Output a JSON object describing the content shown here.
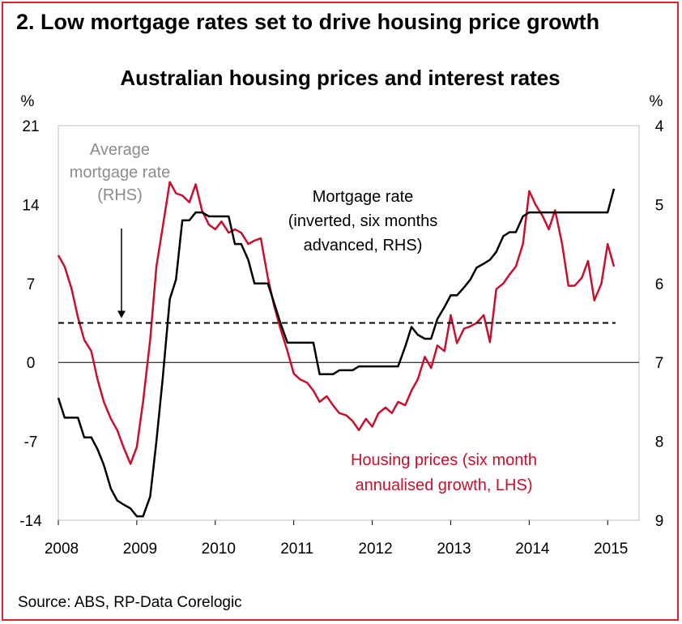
{
  "page": {
    "figure_title": "2. Low mortgage rates set to drive housing price growth",
    "source": "Source: ABS, RP-Data Corelogic"
  },
  "chart_data": {
    "type": "line",
    "title": "Australian housing prices and interest rates",
    "y_left": {
      "unit": "%",
      "ticks": [
        21,
        14,
        7,
        0,
        -7,
        -14
      ],
      "ylim": [
        -14,
        21
      ]
    },
    "y_right": {
      "unit": "%",
      "ticks": [
        4,
        5,
        6,
        7,
        8,
        9
      ],
      "ylim": [
        9,
        4
      ],
      "inverted": true
    },
    "x": {
      "ticks": [
        "2008",
        "2009",
        "2010",
        "2011",
        "2012",
        "2013",
        "2014",
        "2015"
      ],
      "xlim": [
        2008,
        2015.4
      ]
    },
    "grid": false,
    "colors": {
      "housing": "#c8102e",
      "mortgage": "#000000",
      "average": "#000000",
      "annotation_grey": "#8c8c8c",
      "frame": "#d7262e"
    },
    "annotations": {
      "average": [
        "Average",
        "mortgage rate",
        "(RHS)"
      ],
      "mortgage": [
        "Mortgage rate",
        "(inverted, six months",
        "advanced, RHS)"
      ],
      "housing": [
        "Housing prices (six month",
        "annualised growth, LHS)"
      ]
    },
    "series": [
      {
        "key": "housing",
        "axis": "left",
        "x": [
          2008.0,
          2008.08,
          2008.17,
          2008.25,
          2008.33,
          2008.42,
          2008.5,
          2008.58,
          2008.67,
          2008.75,
          2008.83,
          2008.92,
          2009.0,
          2009.08,
          2009.17,
          2009.25,
          2009.33,
          2009.42,
          2009.5,
          2009.58,
          2009.67,
          2009.75,
          2009.83,
          2009.92,
          2010.0,
          2010.08,
          2010.17,
          2010.25,
          2010.33,
          2010.42,
          2010.5,
          2010.58,
          2010.67,
          2010.75,
          2010.83,
          2010.92,
          2011.0,
          2011.08,
          2011.17,
          2011.25,
          2011.33,
          2011.42,
          2011.5,
          2011.58,
          2011.67,
          2011.75,
          2011.83,
          2011.92,
          2012.0,
          2012.08,
          2012.17,
          2012.25,
          2012.33,
          2012.42,
          2012.5,
          2012.58,
          2012.67,
          2012.75,
          2012.83,
          2012.92,
          2013.0,
          2013.08,
          2013.17,
          2013.25,
          2013.33,
          2013.42,
          2013.5,
          2013.58,
          2013.67,
          2013.75,
          2013.83,
          2013.92,
          2014.0,
          2014.08,
          2014.17,
          2014.25,
          2014.33,
          2014.42,
          2014.5,
          2014.58,
          2014.67,
          2014.75,
          2014.83,
          2014.92,
          2015.0,
          2015.08
        ],
        "values": [
          9.5,
          8.5,
          6.5,
          4.0,
          2.0,
          1.0,
          -1.5,
          -3.5,
          -5.0,
          -6.0,
          -7.5,
          -9.0,
          -7.5,
          -3.5,
          2.0,
          8.5,
          12.0,
          16.0,
          15.0,
          14.8,
          14.2,
          15.8,
          13.5,
          12.2,
          11.8,
          12.5,
          11.5,
          11.8,
          11.5,
          10.5,
          10.8,
          11.0,
          7.5,
          5.0,
          3.0,
          1.0,
          -1.0,
          -1.5,
          -1.8,
          -2.5,
          -3.5,
          -3.0,
          -3.8,
          -4.5,
          -4.7,
          -5.2,
          -6.0,
          -5.0,
          -5.7,
          -4.5,
          -4.0,
          -4.5,
          -3.5,
          -3.8,
          -2.5,
          -1.5,
          0.5,
          -0.5,
          1.5,
          1.0,
          4.2,
          1.7,
          3.0,
          3.2,
          3.5,
          4.2,
          1.8,
          6.5,
          7.0,
          7.8,
          8.5,
          10.5,
          15.2,
          14.0,
          13.0,
          11.8,
          13.5,
          10.5,
          6.8,
          6.8,
          7.5,
          9.0,
          5.5,
          7.0,
          10.5,
          8.5
        ]
      },
      {
        "key": "mortgage",
        "axis": "right",
        "x": [
          2008.0,
          2008.08,
          2008.17,
          2008.25,
          2008.33,
          2008.42,
          2008.5,
          2008.58,
          2008.67,
          2008.75,
          2008.83,
          2008.92,
          2009.0,
          2009.08,
          2009.17,
          2009.25,
          2009.33,
          2009.42,
          2009.5,
          2009.58,
          2009.67,
          2009.75,
          2009.83,
          2009.92,
          2010.0,
          2010.08,
          2010.17,
          2010.25,
          2010.33,
          2010.42,
          2010.5,
          2010.58,
          2010.67,
          2010.75,
          2010.83,
          2010.92,
          2011.0,
          2011.08,
          2011.17,
          2011.25,
          2011.33,
          2011.42,
          2011.5,
          2011.58,
          2011.67,
          2011.75,
          2011.83,
          2011.92,
          2012.0,
          2012.08,
          2012.17,
          2012.25,
          2012.33,
          2012.42,
          2012.5,
          2012.58,
          2012.67,
          2012.75,
          2012.83,
          2012.92,
          2013.0,
          2013.08,
          2013.17,
          2013.25,
          2013.33,
          2013.42,
          2013.5,
          2013.58,
          2013.67,
          2013.75,
          2013.83,
          2013.92,
          2014.0,
          2014.08,
          2014.17,
          2014.25,
          2014.33,
          2014.42,
          2014.5,
          2014.58,
          2014.67,
          2014.75,
          2014.83,
          2014.92,
          2015.0,
          2015.08
        ],
        "values": [
          7.45,
          7.7,
          7.7,
          7.7,
          7.95,
          7.95,
          8.1,
          8.3,
          8.6,
          8.75,
          8.8,
          8.85,
          8.95,
          8.95,
          8.7,
          8.0,
          7.2,
          6.2,
          5.95,
          5.2,
          5.2,
          5.1,
          5.1,
          5.15,
          5.15,
          5.15,
          5.15,
          5.5,
          5.5,
          5.7,
          6.0,
          6.0,
          6.0,
          6.25,
          6.5,
          6.75,
          6.75,
          6.75,
          6.75,
          6.75,
          7.15,
          7.15,
          7.15,
          7.1,
          7.1,
          7.1,
          7.05,
          7.05,
          7.05,
          7.05,
          7.05,
          7.05,
          7.05,
          6.8,
          6.55,
          6.65,
          6.7,
          6.7,
          6.45,
          6.3,
          6.15,
          6.15,
          6.05,
          5.95,
          5.8,
          5.75,
          5.7,
          5.6,
          5.4,
          5.35,
          5.35,
          5.15,
          5.1,
          5.1,
          5.1,
          5.1,
          5.1,
          5.1,
          5.1,
          5.1,
          5.1,
          5.1,
          5.1,
          5.1,
          5.1,
          4.8
        ]
      },
      {
        "key": "average",
        "axis": "right",
        "style": "dashed",
        "x": [
          2008.0,
          2015.1
        ],
        "values": [
          6.5,
          6.5
        ]
      }
    ]
  }
}
